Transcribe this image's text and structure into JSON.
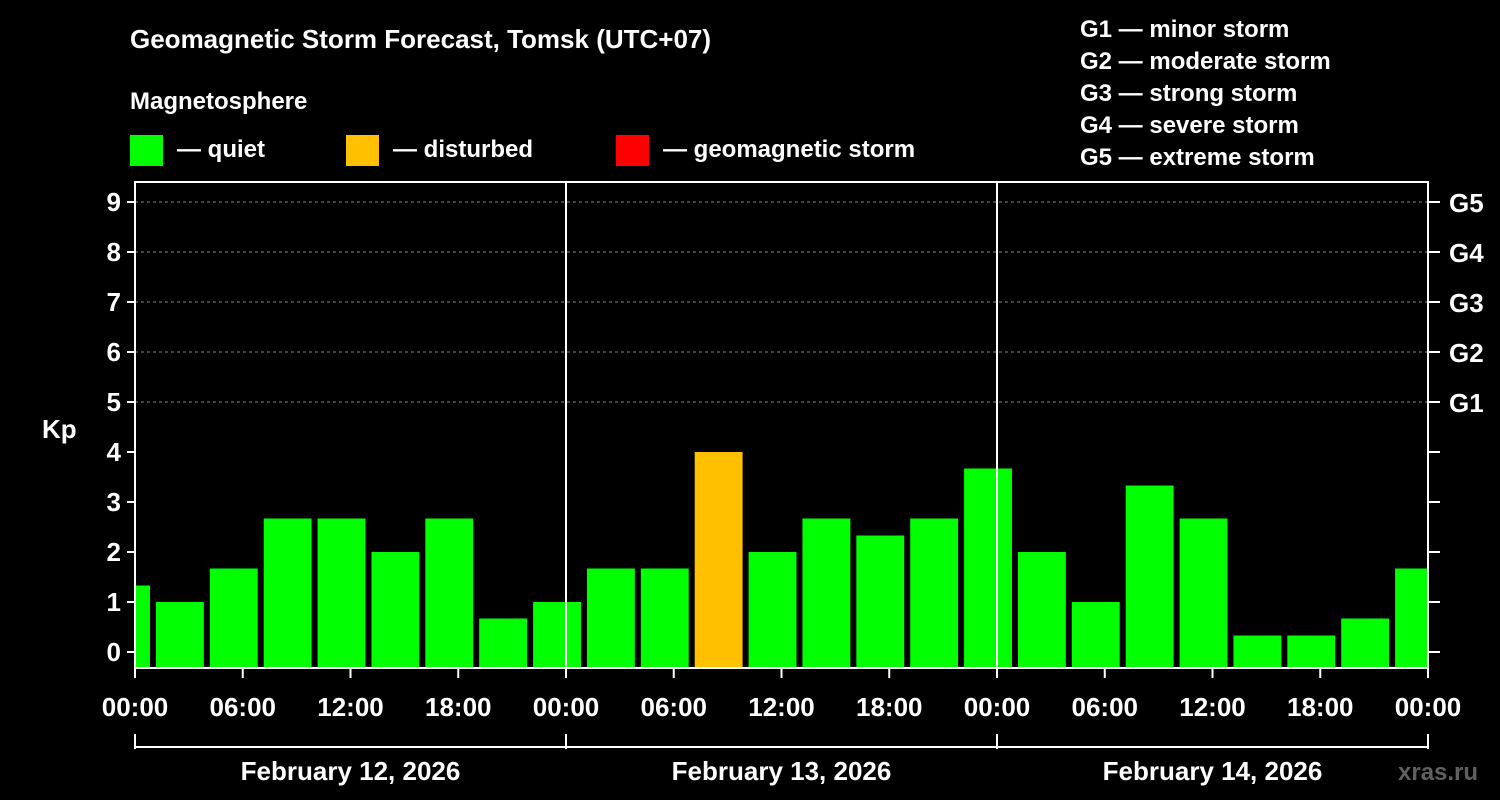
{
  "chart_data": {
    "type": "bar",
    "title": "Geomagnetic Storm Forecast, Tomsk (UTC+07)",
    "legend_title": "Magnetosphere",
    "legend": [
      {
        "label": "— quiet",
        "color": "#00ff00"
      },
      {
        "label": "— disturbed",
        "color": "#ffc000"
      },
      {
        "label": "— geomagnetic storm",
        "color": "#ff0000"
      }
    ],
    "storm_scale": [
      "G1 — minor storm",
      "G2 — moderate storm",
      "G3 — strong storm",
      "G4 — severe storm",
      "G5 — extreme storm"
    ],
    "ylabel": "Kp",
    "ylim": [
      0,
      9
    ],
    "yticks": [
      "0",
      "1",
      "2",
      "3",
      "4",
      "5",
      "6",
      "7",
      "8",
      "9"
    ],
    "right_ticks": [
      {
        "kp": 5,
        "label": "G1"
      },
      {
        "kp": 6,
        "label": "G2"
      },
      {
        "kp": 7,
        "label": "G3"
      },
      {
        "kp": 8,
        "label": "G4"
      },
      {
        "kp": 9,
        "label": "G5"
      }
    ],
    "x_range_hours": [
      0,
      72
    ],
    "xticks": [
      {
        "h": 0,
        "label": "00:00"
      },
      {
        "h": 6,
        "label": "06:00"
      },
      {
        "h": 12,
        "label": "12:00"
      },
      {
        "h": 18,
        "label": "18:00"
      },
      {
        "h": 24,
        "label": "00:00"
      },
      {
        "h": 30,
        "label": "06:00"
      },
      {
        "h": 36,
        "label": "12:00"
      },
      {
        "h": 42,
        "label": "18:00"
      },
      {
        "h": 48,
        "label": "00:00"
      },
      {
        "h": 54,
        "label": "06:00"
      },
      {
        "h": 60,
        "label": "12:00"
      },
      {
        "h": 66,
        "label": "18:00"
      },
      {
        "h": 72,
        "label": "00:00"
      }
    ],
    "days": [
      "February 12, 2026",
      "February 13, 2026",
      "February 14, 2026"
    ],
    "bar_start_hours": [
      -2,
      1,
      4,
      7,
      10,
      13,
      16,
      19,
      22,
      25,
      28,
      31,
      34,
      37,
      40,
      43,
      46,
      49,
      52,
      55,
      58,
      61,
      64,
      67,
      70
    ],
    "bar_hours": 3,
    "values": [
      1.33,
      1.0,
      1.67,
      2.67,
      2.67,
      2.0,
      2.67,
      0.67,
      1.0,
      1.67,
      1.67,
      4.0,
      2.0,
      2.67,
      2.33,
      2.67,
      3.67,
      2.0,
      1.0,
      3.33,
      2.67,
      0.33,
      0.33,
      0.67,
      1.67
    ],
    "gridlines": "dashed at Kp 5-9",
    "watermark": "xras.ru"
  }
}
